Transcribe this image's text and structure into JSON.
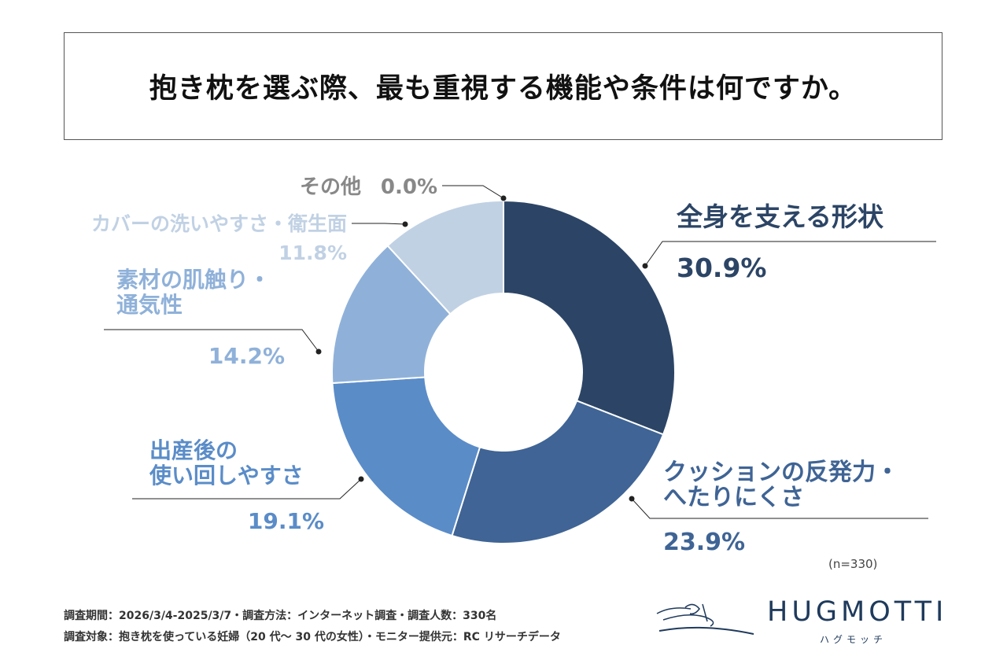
{
  "title": "抱き枕を選ぶ際、最も重視する機能や条件は何ですか。",
  "chart_data": {
    "type": "pie",
    "title": "抱き枕を選ぶ際、最も重視する機能や条件は何ですか。",
    "slices": [
      {
        "label_lines": [
          "全身を支える形状"
        ],
        "value": 30.9,
        "value_text": "30.9%",
        "color": "#2c4566"
      },
      {
        "label_lines": [
          "クッションの反発力・",
          "へたりにくさ"
        ],
        "value": 23.9,
        "value_text": "23.9%",
        "color": "#3f6495"
      },
      {
        "label_lines": [
          "出産後の",
          "使い回しやすさ"
        ],
        "value": 19.1,
        "value_text": "19.1%",
        "color": "#5a8cc8"
      },
      {
        "label_lines": [
          "素材の肌触り・",
          "通気性"
        ],
        "value": 14.2,
        "value_text": "14.2%",
        "color": "#8fb1d9"
      },
      {
        "label_lines": [
          "カバーの洗いやすさ・衛生面"
        ],
        "value": 11.8,
        "value_text": "11.8%",
        "color": "#c1d1e4"
      },
      {
        "label_lines": [
          "その他"
        ],
        "value": 0.0,
        "value_text": "0.0%",
        "color": "#888888"
      }
    ],
    "sample_note": "(n=330)"
  },
  "footer": {
    "line1": "調査期間：2026/3/4-2025/3/7・調査方法：インターネット調査・調査人数：330名",
    "line2": "調査対象：抱き枕を使っている妊婦（20 代〜 30 代の女性）・モニター提供元：RC リサーチデータ"
  },
  "brand": {
    "name": "HUGMOTTI",
    "kana": "ハグモッチ",
    "color": "#1f3a5c"
  }
}
